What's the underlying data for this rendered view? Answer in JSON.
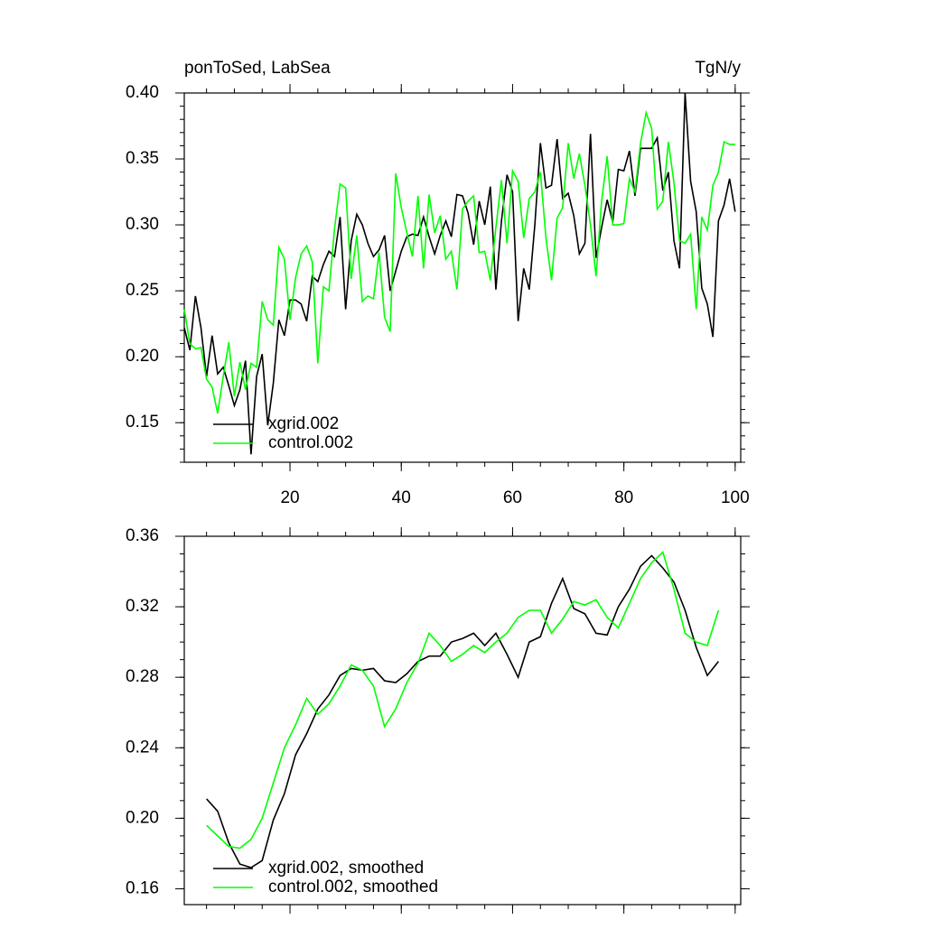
{
  "chart_data": [
    {
      "type": "line",
      "title": "ponToSed, LabSea",
      "units": "TgN/y",
      "x": [
        1,
        2,
        3,
        4,
        5,
        6,
        7,
        8,
        9,
        10,
        11,
        12,
        13,
        14,
        15,
        16,
        17,
        18,
        19,
        20,
        21,
        22,
        23,
        24,
        25,
        26,
        27,
        28,
        29,
        30,
        31,
        32,
        33,
        34,
        35,
        36,
        37,
        38,
        39,
        40,
        41,
        42,
        43,
        44,
        45,
        46,
        47,
        48,
        49,
        50,
        51,
        52,
        53,
        54,
        55,
        56,
        57,
        58,
        59,
        60,
        61,
        62,
        63,
        64,
        65,
        66,
        67,
        68,
        69,
        70,
        71,
        72,
        73,
        74,
        75,
        76,
        77,
        78,
        79,
        80,
        81,
        82,
        83,
        84,
        85,
        86,
        87,
        88,
        89,
        90,
        91,
        92,
        93,
        94,
        95,
        96,
        97,
        98,
        99,
        100
      ],
      "series": [
        {
          "name": "xgrid.002",
          "color": "#000000",
          "values": [
            0.222,
            0.205,
            0.246,
            0.222,
            0.185,
            0.216,
            0.187,
            0.192,
            0.178,
            0.163,
            0.175,
            0.197,
            0.126,
            0.185,
            0.202,
            0.148,
            0.18,
            0.228,
            0.216,
            0.243,
            0.243,
            0.24,
            0.227,
            0.261,
            0.257,
            0.27,
            0.28,
            0.276,
            0.306,
            0.236,
            0.288,
            0.308,
            0.3,
            0.286,
            0.276,
            0.281,
            0.292,
            0.25,
            0.265,
            0.28,
            0.291,
            0.293,
            0.292,
            0.306,
            0.291,
            0.278,
            0.292,
            0.303,
            0.291,
            0.323,
            0.322,
            0.309,
            0.285,
            0.318,
            0.3,
            0.329,
            0.251,
            0.303,
            0.338,
            0.325,
            0.227,
            0.267,
            0.251,
            0.3,
            0.362,
            0.328,
            0.33,
            0.365,
            0.32,
            0.324,
            0.307,
            0.278,
            0.286,
            0.369,
            0.275,
            0.298,
            0.319,
            0.302,
            0.342,
            0.341,
            0.356,
            0.322,
            0.358,
            0.358,
            0.358,
            0.366,
            0.326,
            0.34,
            0.288,
            0.267,
            0.4,
            0.333,
            0.31,
            0.252,
            0.24,
            0.215,
            0.303,
            0.315,
            0.335,
            0.31
          ]
        },
        {
          "name": "control.002",
          "color": "#00ff00",
          "values": [
            0.236,
            0.21,
            0.206,
            0.207,
            0.183,
            0.177,
            0.157,
            0.185,
            0.211,
            0.17,
            0.196,
            0.175,
            0.195,
            0.192,
            0.242,
            0.228,
            0.224,
            0.283,
            0.274,
            0.228,
            0.26,
            0.278,
            0.284,
            0.272,
            0.195,
            0.253,
            0.25,
            0.297,
            0.331,
            0.328,
            0.259,
            0.292,
            0.242,
            0.246,
            0.244,
            0.279,
            0.23,
            0.219,
            0.339,
            0.313,
            0.294,
            0.276,
            0.322,
            0.267,
            0.323,
            0.294,
            0.307,
            0.274,
            0.28,
            0.251,
            0.312,
            0.318,
            0.322,
            0.279,
            0.28,
            0.258,
            0.298,
            0.334,
            0.286,
            0.341,
            0.333,
            0.29,
            0.32,
            0.325,
            0.34,
            0.29,
            0.258,
            0.305,
            0.313,
            0.362,
            0.335,
            0.354,
            0.33,
            0.3,
            0.261,
            0.318,
            0.352,
            0.3,
            0.3,
            0.301,
            0.335,
            0.325,
            0.362,
            0.385,
            0.373,
            0.312,
            0.318,
            0.363,
            0.332,
            0.288,
            0.286,
            0.293,
            0.236,
            0.306,
            0.296,
            0.33,
            0.34,
            0.363,
            0.361,
            0.361
          ]
        }
      ],
      "xlim": [
        1,
        101
      ],
      "xticks": [
        20,
        40,
        60,
        80,
        100
      ],
      "ylim": [
        0.12,
        0.4
      ],
      "yticks": [
        {
          "value": 0.4,
          "label": "0.40"
        },
        0.35,
        {
          "value": 0.3,
          "label": "0.30"
        },
        0.25,
        {
          "value": 0.2,
          "label": "0.20"
        },
        0.15
      ]
    },
    {
      "type": "line",
      "x": [
        5,
        7,
        9,
        11,
        13,
        15,
        17,
        19,
        21,
        23,
        25,
        27,
        29,
        31,
        33,
        35,
        37,
        39,
        41,
        43,
        45,
        47,
        49,
        51,
        53,
        55,
        57,
        59,
        61,
        63,
        65,
        67,
        69,
        71,
        73,
        75,
        77,
        79,
        81,
        83,
        85,
        87,
        89,
        91,
        93,
        95,
        97
      ],
      "series": [
        {
          "name": "xgrid.002, smoothed",
          "color": "#000000",
          "values": [
            0.211,
            0.204,
            0.186,
            0.174,
            0.172,
            0.176,
            0.199,
            0.214,
            0.236,
            0.248,
            0.262,
            0.27,
            0.281,
            0.285,
            0.284,
            0.285,
            0.278,
            0.277,
            0.282,
            0.289,
            0.292,
            0.292,
            0.3,
            0.302,
            0.305,
            0.298,
            0.305,
            0.293,
            0.28,
            0.3,
            0.303,
            0.322,
            0.336,
            0.319,
            0.316,
            0.305,
            0.304,
            0.32,
            0.33,
            0.343,
            0.349,
            0.342,
            0.334,
            0.318,
            0.297,
            0.281,
            0.289
          ]
        },
        {
          "name": "control.002, smoothed",
          "color": "#00ff00",
          "values": [
            0.196,
            0.19,
            0.184,
            0.183,
            0.188,
            0.2,
            0.22,
            0.24,
            0.253,
            0.268,
            0.259,
            0.265,
            0.275,
            0.287,
            0.284,
            0.275,
            0.252,
            0.262,
            0.277,
            0.288,
            0.305,
            0.298,
            0.289,
            0.293,
            0.298,
            0.294,
            0.3,
            0.305,
            0.314,
            0.318,
            0.318,
            0.305,
            0.313,
            0.323,
            0.321,
            0.324,
            0.314,
            0.308,
            0.322,
            0.336,
            0.345,
            0.351,
            0.33,
            0.305,
            0.3,
            0.298,
            0.318
          ]
        }
      ],
      "xlim": [
        1,
        101
      ],
      "ylim": [
        0.151,
        0.36
      ],
      "yticks": [
        0.36,
        0.32,
        0.28,
        0.24,
        {
          "value": 0.2,
          "label": "0.20"
        },
        0.16
      ]
    }
  ]
}
